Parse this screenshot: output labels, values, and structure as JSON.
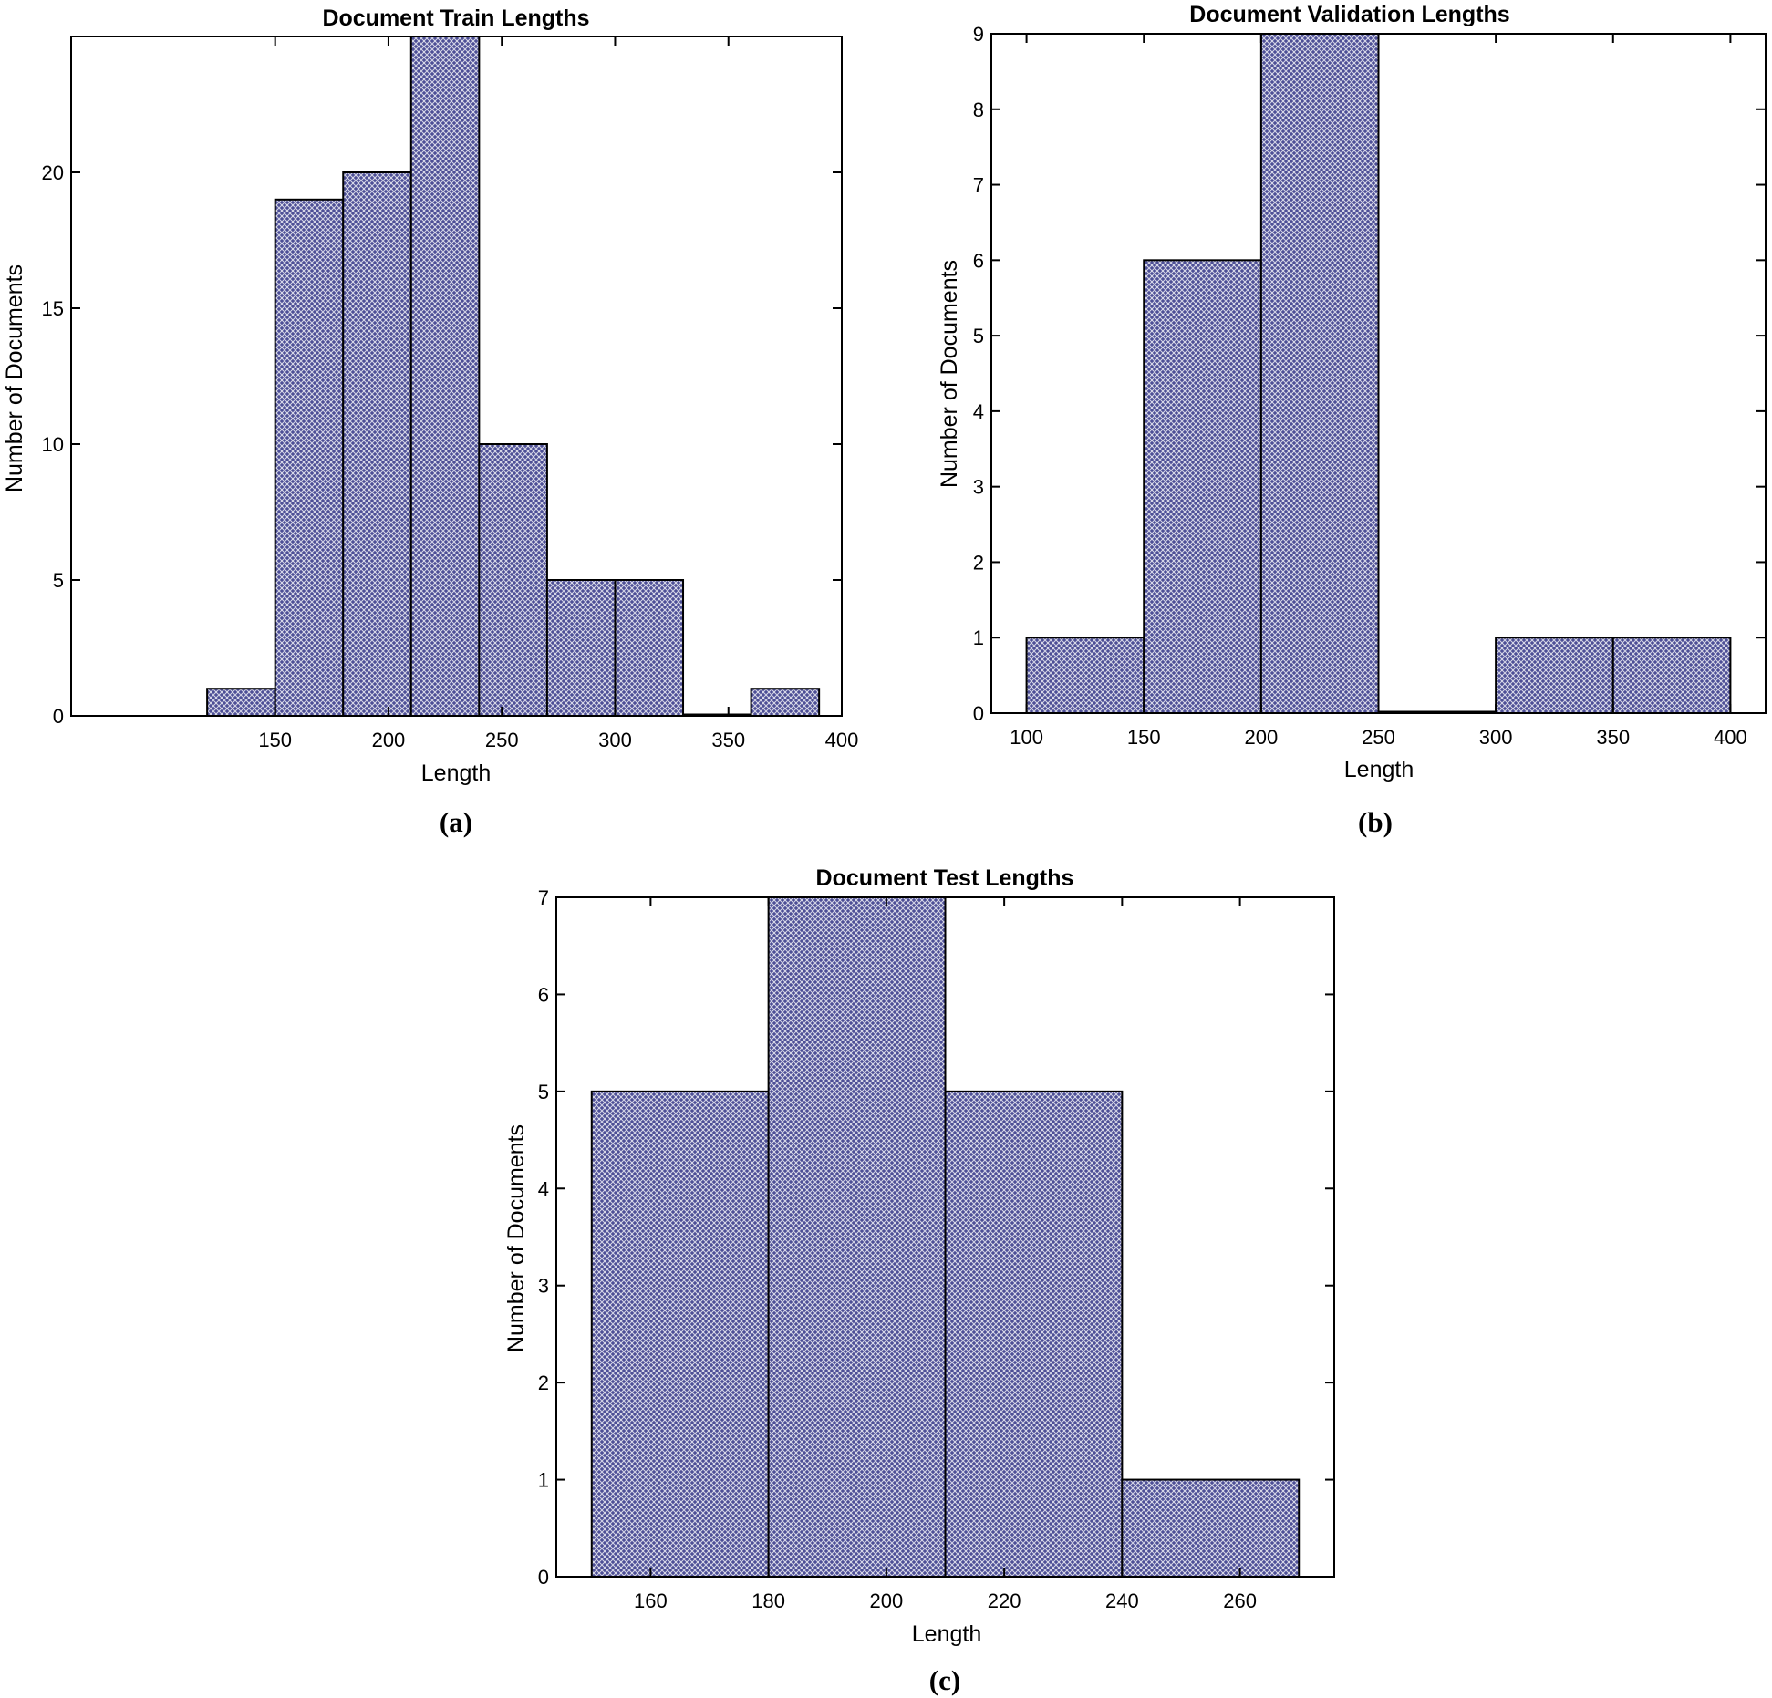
{
  "chart_data": [
    {
      "type": "bar",
      "panel_label": "(a)",
      "title": "Document Train Lengths",
      "xlabel": "Length",
      "ylabel": "Number of Documents",
      "xlim": [
        60,
        400
      ],
      "ylim": [
        0,
        25
      ],
      "xticks": [
        150,
        200,
        250,
        300,
        350,
        400
      ],
      "yticks": [
        0,
        5,
        10,
        15,
        20
      ],
      "bins": [
        {
          "start": 120,
          "end": 150,
          "value": 1
        },
        {
          "start": 150,
          "end": 180,
          "value": 19
        },
        {
          "start": 180,
          "end": 210,
          "value": 20
        },
        {
          "start": 210,
          "end": 240,
          "value": 25
        },
        {
          "start": 240,
          "end": 270,
          "value": 10
        },
        {
          "start": 270,
          "end": 300,
          "value": 5
        },
        {
          "start": 300,
          "end": 330,
          "value": 5
        },
        {
          "start": 330,
          "end": 360,
          "value": 0
        },
        {
          "start": 360,
          "end": 390,
          "value": 1
        }
      ]
    },
    {
      "type": "bar",
      "panel_label": "(b)",
      "title": "Document Validation Lengths",
      "xlabel": "Length",
      "ylabel": "Number of Documents",
      "xlim": [
        85,
        415
      ],
      "ylim": [
        0,
        9
      ],
      "xticks": [
        100,
        150,
        200,
        250,
        300,
        350,
        400
      ],
      "yticks": [
        0,
        1,
        2,
        3,
        4,
        5,
        6,
        7,
        8,
        9
      ],
      "bins": [
        {
          "start": 100,
          "end": 150,
          "value": 1
        },
        {
          "start": 150,
          "end": 200,
          "value": 6
        },
        {
          "start": 200,
          "end": 250,
          "value": 9
        },
        {
          "start": 250,
          "end": 300,
          "value": 0
        },
        {
          "start": 300,
          "end": 350,
          "value": 1
        },
        {
          "start": 350,
          "end": 400,
          "value": 1
        }
      ]
    },
    {
      "type": "bar",
      "panel_label": "(c)",
      "title": "Document Test Lengths",
      "xlabel": "Length",
      "ylabel": "Number of Documents",
      "xlim": [
        144,
        276
      ],
      "ylim": [
        0,
        7
      ],
      "xticks": [
        160,
        180,
        200,
        220,
        240,
        260
      ],
      "yticks": [
        0,
        1,
        2,
        3,
        4,
        5,
        6,
        7
      ],
      "bins": [
        {
          "start": 150,
          "end": 180,
          "value": 5
        },
        {
          "start": 180,
          "end": 210,
          "value": 7
        },
        {
          "start": 210,
          "end": 240,
          "value": 5
        },
        {
          "start": 240,
          "end": 270,
          "value": 1
        }
      ]
    }
  ],
  "colors": {
    "bar_fill": "#4d4f96",
    "bar_hatch": "#ffffff",
    "axis": "#000000"
  }
}
